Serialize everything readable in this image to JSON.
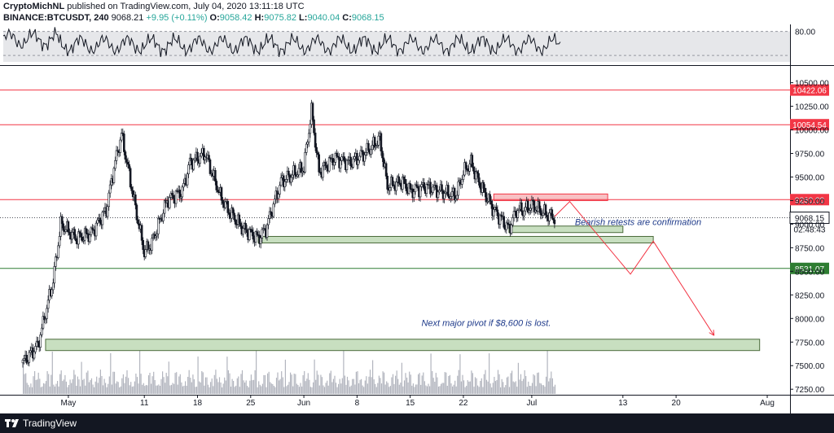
{
  "header": {
    "author": "CryptoMichNL",
    "published": "published on TradingView.com, July 04, 2020 13:11:18 UTC",
    "symbol": "BINANCE:BTCUSDT, 240",
    "last": "9068.21",
    "change": "+9.95 (+0.11%)",
    "o_label": "O:",
    "o_value": "9058.42",
    "h_label": "H:",
    "h_value": "9075.82",
    "l_label": "L:",
    "l_value": "9040.04",
    "c_label": "C:",
    "c_value": "9068.15"
  },
  "footer": {
    "brand": "TradingView"
  },
  "colors": {
    "red": "#f23645",
    "green": "#2e7d32",
    "zone_fill": "#c8dfc0",
    "zone_stroke": "#4b6b3b",
    "red_zone": "#f8c1c4",
    "annotation": "#1e3a8a",
    "candle": "#131722"
  },
  "chart_data": {
    "type": "candlestick",
    "symbol": "BINANCE:BTCUSDT",
    "interval": "240",
    "ylim": [
      7200,
      10600
    ],
    "y_ticks": [
      "10500.00",
      "10250.00",
      "10000.00",
      "9750.00",
      "9500.00",
      "9250.00",
      "9000.00",
      "8750.00",
      "8500.00",
      "8250.00",
      "8000.00",
      "7750.00",
      "7500.00",
      "7250.00"
    ],
    "x_ticks": [
      "May",
      "11",
      "18",
      "25",
      "Jun",
      "8",
      "15",
      "22",
      "Jul",
      "13",
      "20",
      "Aug"
    ],
    "x_tick_dates": [
      "2020-05-01",
      "2020-05-11",
      "2020-05-18",
      "2020-05-25",
      "2020-06-01",
      "2020-06-08",
      "2020-06-15",
      "2020-06-22",
      "2020-07-01",
      "2020-07-13",
      "2020-07-20",
      "2020-08-01"
    ],
    "rsi": {
      "ylim": [
        20,
        90
      ],
      "level_label": "80.00",
      "level": 80
    },
    "price_path": [
      [
        "2020-04-25",
        7530
      ],
      [
        "2020-04-27",
        7720
      ],
      [
        "2020-04-29",
        8400
      ],
      [
        "2020-04-30",
        9000
      ],
      [
        "2020-05-02",
        8850
      ],
      [
        "2020-05-04",
        8900
      ],
      [
        "2020-05-06",
        9150
      ],
      [
        "2020-05-07",
        9600
      ],
      [
        "2020-05-08",
        9950
      ],
      [
        "2020-05-10",
        9100
      ],
      [
        "2020-05-11",
        8700
      ],
      [
        "2020-05-12",
        8800
      ],
      [
        "2020-05-14",
        9250
      ],
      [
        "2020-05-16",
        9350
      ],
      [
        "2020-05-17",
        9650
      ],
      [
        "2020-05-19",
        9750
      ],
      [
        "2020-05-21",
        9300
      ],
      [
        "2020-05-22",
        9150
      ],
      [
        "2020-05-24",
        8950
      ],
      [
        "2020-05-26",
        8850
      ],
      [
        "2020-05-27",
        8950
      ],
      [
        "2020-05-29",
        9450
      ],
      [
        "2020-05-31",
        9550
      ],
      [
        "2020-06-01",
        9600
      ],
      [
        "2020-06-02",
        10200
      ],
      [
        "2020-06-03",
        9550
      ],
      [
        "2020-06-05",
        9700
      ],
      [
        "2020-06-07",
        9650
      ],
      [
        "2020-06-09",
        9750
      ],
      [
        "2020-06-11",
        9900
      ],
      [
        "2020-06-12",
        9400
      ],
      [
        "2020-06-14",
        9450
      ],
      [
        "2020-06-15",
        9350
      ],
      [
        "2020-06-17",
        9400
      ],
      [
        "2020-06-19",
        9350
      ],
      [
        "2020-06-21",
        9300
      ],
      [
        "2020-06-22",
        9550
      ],
      [
        "2020-06-23",
        9650
      ],
      [
        "2020-06-24",
        9450
      ],
      [
        "2020-06-26",
        9150
      ],
      [
        "2020-06-27",
        9050
      ],
      [
        "2020-06-28",
        8950
      ],
      [
        "2020-06-29",
        9150
      ],
      [
        "2020-06-30",
        9150
      ],
      [
        "2020-07-01",
        9200
      ],
      [
        "2020-07-02",
        9150
      ],
      [
        "2020-07-03",
        9100
      ],
      [
        "2020-07-04",
        9068
      ]
    ],
    "horizontal_levels": [
      {
        "price": 10422.06,
        "label": "10422.06",
        "color": "red"
      },
      {
        "price": 10054.54,
        "label": "10054.54",
        "color": "red"
      },
      {
        "price": 9260.0,
        "label": "9260.00",
        "color": "red"
      },
      {
        "price": 8531.07,
        "label": "8531.07",
        "color": "green"
      }
    ],
    "last_price": {
      "price": 9068.15,
      "label": "9068.15",
      "countdown": "02:48:43"
    },
    "zones": [
      {
        "name": "resistance",
        "from": "2020-06-26",
        "to": "2020-07-11",
        "top": 9320,
        "bottom": 9250
      },
      {
        "name": "retest",
        "from": "2020-06-28",
        "to": "2020-07-13",
        "top": 8980,
        "bottom": 8920
      },
      {
        "name": "support",
        "from": "2020-05-26",
        "to": "2020-07-17",
        "top": 8870,
        "bottom": 8810
      },
      {
        "name": "major-pivot",
        "from": "2020-04-28",
        "to": "2020-07-31",
        "top": 7780,
        "bottom": 7660
      }
    ],
    "projection": [
      [
        "2020-07-04",
        9080
      ],
      [
        "2020-07-06",
        9240
      ],
      [
        "2020-07-14",
        8470
      ],
      [
        "2020-07-17",
        8820
      ],
      [
        "2020-07-25",
        7820
      ]
    ],
    "annotations": [
      {
        "text": "Bearish retests are confirmation",
        "date": "2020-07-15",
        "price": 8990
      },
      {
        "text": "Next major pivot if $8,600 is lost.",
        "date": "2020-06-25",
        "price": 7920
      }
    ]
  }
}
